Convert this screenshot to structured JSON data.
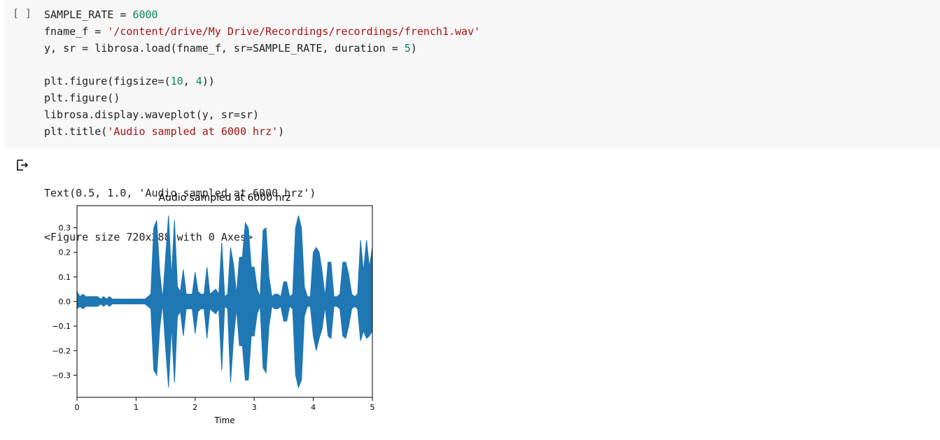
{
  "cell": {
    "run_label": "[ ]",
    "code_lines": [
      [
        {
          "t": "SAMPLE_RATE = ",
          "c": ""
        },
        {
          "t": "6000",
          "c": "num"
        }
      ],
      [
        {
          "t": "fname_f = ",
          "c": ""
        },
        {
          "t": "'/content/drive/My Drive/Recordings/recordings/french1.wav'",
          "c": "str"
        }
      ],
      [
        {
          "t": "y, sr = librosa.load(fname_f, sr=SAMPLE_RATE, duration = ",
          "c": ""
        },
        {
          "t": "5",
          "c": "num"
        },
        {
          "t": ")",
          "c": ""
        }
      ],
      [],
      [
        {
          "t": "plt.figure(figsize=(",
          "c": ""
        },
        {
          "t": "10",
          "c": "num"
        },
        {
          "t": ", ",
          "c": ""
        },
        {
          "t": "4",
          "c": "num"
        },
        {
          "t": "))",
          "c": ""
        }
      ],
      [
        {
          "t": "plt.figure()",
          "c": ""
        }
      ],
      [
        {
          "t": "librosa.display.waveplot(y, sr=sr)",
          "c": ""
        }
      ],
      [
        {
          "t": "plt.title(",
          "c": ""
        },
        {
          "t": "'Audio sampled at 6000 hrz'",
          "c": "str"
        },
        {
          "t": ")",
          "c": ""
        }
      ]
    ]
  },
  "output": {
    "lines": [
      "Text(0.5, 1.0, 'Audio sampled at 6000 hrz')",
      "<Figure size 720x288 with 0 Axes>"
    ]
  },
  "chart_data": {
    "type": "line",
    "title": "Audio sampled at 6000 hrz",
    "xlabel": "Time",
    "ylabel": "",
    "xlim": [
      0,
      5
    ],
    "ylim": [
      -0.39,
      0.39
    ],
    "xticks": [
      "0",
      "1",
      "2",
      "3",
      "4",
      "5"
    ],
    "yticks": [
      "0.3",
      "0.2",
      "0.1",
      "0.0",
      "−0.1",
      "−0.2",
      "−0.3"
    ],
    "ytick_values": [
      0.3,
      0.2,
      0.1,
      0.0,
      -0.1,
      -0.2,
      -0.3
    ],
    "series_color": "#1f77b4",
    "series": [
      {
        "x": [
          0.0,
          0.05,
          0.1,
          0.15,
          0.2,
          0.25,
          0.3,
          0.35,
          0.4,
          0.45,
          0.5,
          0.55,
          0.6,
          0.65,
          0.7,
          0.75,
          0.8,
          0.85,
          0.9,
          0.95,
          1.0,
          1.05,
          1.1,
          1.15,
          1.2,
          1.25,
          1.3,
          1.35,
          1.4,
          1.45,
          1.5,
          1.55,
          1.6,
          1.65,
          1.7,
          1.75,
          1.8,
          1.85,
          1.9,
          1.95,
          2.0,
          2.05,
          2.1,
          2.15,
          2.2,
          2.25,
          2.3,
          2.35,
          2.4,
          2.45,
          2.5,
          2.55,
          2.6,
          2.65,
          2.7,
          2.75,
          2.8,
          2.85,
          2.9,
          2.95,
          3.0,
          3.05,
          3.1,
          3.15,
          3.2,
          3.25,
          3.3,
          3.35,
          3.4,
          3.45,
          3.5,
          3.55,
          3.6,
          3.65,
          3.7,
          3.75,
          3.8,
          3.85,
          3.9,
          3.95,
          4.0,
          4.05,
          4.1,
          4.15,
          4.2,
          4.25,
          4.3,
          4.35,
          4.4,
          4.45,
          4.5,
          4.55,
          4.6,
          4.65,
          4.7,
          4.75,
          4.8,
          4.85,
          4.9,
          4.95,
          5.0
        ],
        "max": [
          0.04,
          0.02,
          0.03,
          0.02,
          0.02,
          0.02,
          0.02,
          0.02,
          0.01,
          0.02,
          0.01,
          0.02,
          0.01,
          0.01,
          0.01,
          0.01,
          0.01,
          0.01,
          0.01,
          0.01,
          0.01,
          0.01,
          0.01,
          0.01,
          0.02,
          0.03,
          0.3,
          0.33,
          0.12,
          0.01,
          0.18,
          0.35,
          0.1,
          0.33,
          0.06,
          0.04,
          0.13,
          0.03,
          0.03,
          0.03,
          0.12,
          0.04,
          0.03,
          0.03,
          0.14,
          0.03,
          0.04,
          0.05,
          0.03,
          0.24,
          0.02,
          0.03,
          0.22,
          0.15,
          0.03,
          0.18,
          0.18,
          0.32,
          0.3,
          0.14,
          0.14,
          0.05,
          0.02,
          0.29,
          0.3,
          0.1,
          0.02,
          0.03,
          0.03,
          0.02,
          0.08,
          0.08,
          0.02,
          0.03,
          0.3,
          0.35,
          0.3,
          0.06,
          0.02,
          0.02,
          0.2,
          0.22,
          0.2,
          0.12,
          0.02,
          0.16,
          0.16,
          0.02,
          0.02,
          0.03,
          0.16,
          0.16,
          0.11,
          0.03,
          0.02,
          0.03,
          0.25,
          0.12,
          0.25,
          0.14,
          0.22
        ],
        "min": [
          -0.03,
          -0.02,
          -0.03,
          -0.02,
          -0.02,
          -0.02,
          -0.02,
          -0.02,
          -0.01,
          -0.02,
          -0.01,
          -0.02,
          -0.01,
          -0.01,
          -0.01,
          -0.01,
          -0.01,
          -0.01,
          -0.01,
          -0.01,
          -0.01,
          -0.01,
          -0.01,
          -0.01,
          -0.02,
          -0.03,
          -0.28,
          -0.3,
          -0.11,
          -0.01,
          -0.19,
          -0.35,
          -0.1,
          -0.33,
          -0.06,
          -0.04,
          -0.14,
          -0.03,
          -0.03,
          -0.03,
          -0.13,
          -0.04,
          -0.03,
          -0.03,
          -0.15,
          -0.03,
          -0.04,
          -0.05,
          -0.03,
          -0.28,
          -0.02,
          -0.03,
          -0.33,
          -0.15,
          -0.03,
          -0.18,
          -0.18,
          -0.32,
          -0.32,
          -0.14,
          -0.14,
          -0.05,
          -0.02,
          -0.27,
          -0.29,
          -0.1,
          -0.02,
          -0.03,
          -0.03,
          -0.02,
          -0.08,
          -0.08,
          -0.02,
          -0.03,
          -0.3,
          -0.35,
          -0.32,
          -0.06,
          -0.02,
          -0.02,
          -0.14,
          -0.2,
          -0.15,
          -0.11,
          -0.02,
          -0.14,
          -0.15,
          -0.02,
          -0.02,
          -0.03,
          -0.14,
          -0.15,
          -0.1,
          -0.03,
          -0.02,
          -0.03,
          -0.16,
          -0.12,
          -0.15,
          -0.14,
          -0.12
        ]
      }
    ]
  }
}
